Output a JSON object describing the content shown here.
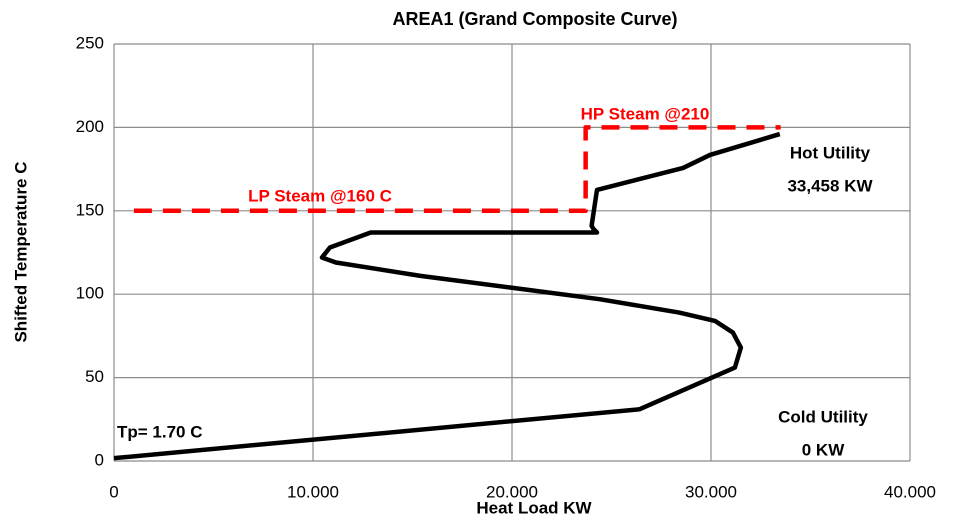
{
  "chart_data": {
    "type": "line",
    "title": "AREA1 (Grand Composite Curve)",
    "x_label": "Heat Load KW",
    "y_label": "Shifted Temperature C",
    "xlim": [
      0,
      40000
    ],
    "ylim": [
      0,
      250
    ],
    "xticks": [
      0,
      {
        "value": 10000,
        "label": "10.000"
      },
      {
        "value": 20000,
        "label": "20.000"
      },
      {
        "value": 30000,
        "label": "30.000"
      },
      {
        "value": 40000,
        "label": "40.000"
      }
    ],
    "yticks": [
      0,
      50,
      100,
      150,
      200,
      250
    ],
    "grid": true,
    "series": [
      {
        "color": "#000000",
        "dashed": false,
        "x": [
          0,
          26400,
          31200,
          31500,
          31100,
          30200,
          28400,
          24400,
          19900,
          15400,
          11150,
          10450,
          10850,
          12900,
          24270,
          24100,
          24000,
          24270,
          28600,
          29950,
          33458
        ],
        "values": [
          1.7,
          31,
          56,
          68,
          77,
          84,
          89,
          97,
          104,
          111,
          119,
          122,
          128,
          137,
          137,
          139,
          141,
          162.5,
          175.7,
          183.5,
          196
        ]
      },
      {
        "color": "#ff0000",
        "dashed": true,
        "x": [
          1000,
          23700,
          23700,
          33500
        ],
        "values": [
          150,
          150,
          200,
          200
        ]
      }
    ],
    "annotations": [
      {
        "text": "LP Steam @160 C",
        "color": "#ff0000"
      },
      {
        "text": "HP Steam @210",
        "color": "#ff0000"
      },
      {
        "text": "Hot Utility",
        "color": "#000000"
      },
      {
        "text": "33,458 KW",
        "color": "#000000"
      },
      {
        "text": "Tp= 1.70 C",
        "color": "#000000"
      },
      {
        "text": "Cold Utility",
        "color": "#000000"
      },
      {
        "text": "0 KW",
        "color": "#000000"
      }
    ]
  }
}
